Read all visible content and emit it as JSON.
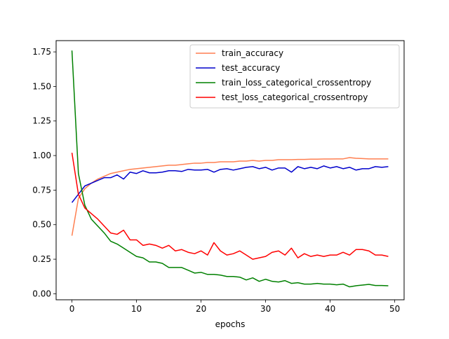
{
  "chart_data": {
    "type": "line",
    "xlabel": "epochs",
    "xlim": [
      -2.45,
      51.45
    ],
    "ylim": [
      -0.0435,
      1.8315
    ],
    "x_ticks": [
      0,
      10,
      20,
      30,
      40,
      50
    ],
    "y_ticks": [
      0.0,
      0.25,
      0.5,
      0.75,
      1.0,
      1.25,
      1.5,
      1.75
    ],
    "x_tick_labels": [
      "0",
      "10",
      "20",
      "30",
      "40",
      "50"
    ],
    "y_tick_labels": [
      "0.00",
      "0.25",
      "0.50",
      "0.75",
      "1.00",
      "1.25",
      "1.50",
      "1.75"
    ],
    "grid": false,
    "legend_position": "top-right",
    "x": [
      0,
      1,
      2,
      3,
      4,
      5,
      6,
      7,
      8,
      9,
      10,
      11,
      12,
      13,
      14,
      15,
      16,
      17,
      18,
      19,
      20,
      21,
      22,
      23,
      24,
      25,
      26,
      27,
      28,
      29,
      30,
      31,
      32,
      33,
      34,
      35,
      36,
      37,
      38,
      39,
      40,
      41,
      42,
      43,
      44,
      45,
      46,
      47,
      48,
      49
    ],
    "series": [
      {
        "name": "train_accuracy",
        "color": "#ff7f50",
        "values": [
          0.42,
          0.69,
          0.76,
          0.8,
          0.83,
          0.85,
          0.87,
          0.88,
          0.89,
          0.9,
          0.905,
          0.91,
          0.915,
          0.92,
          0.925,
          0.93,
          0.93,
          0.935,
          0.94,
          0.945,
          0.945,
          0.95,
          0.95,
          0.955,
          0.955,
          0.955,
          0.96,
          0.96,
          0.965,
          0.96,
          0.965,
          0.965,
          0.97,
          0.97,
          0.97,
          0.972,
          0.972,
          0.974,
          0.974,
          0.975,
          0.975,
          0.976,
          0.976,
          0.985,
          0.98,
          0.978,
          0.976,
          0.976,
          0.976,
          0.976
        ]
      },
      {
        "name": "test_accuracy",
        "color": "#0000cc",
        "values": [
          0.66,
          0.72,
          0.78,
          0.8,
          0.82,
          0.84,
          0.84,
          0.86,
          0.83,
          0.88,
          0.87,
          0.89,
          0.875,
          0.875,
          0.88,
          0.89,
          0.89,
          0.885,
          0.9,
          0.895,
          0.895,
          0.9,
          0.88,
          0.9,
          0.905,
          0.895,
          0.905,
          0.915,
          0.92,
          0.905,
          0.915,
          0.895,
          0.91,
          0.91,
          0.88,
          0.92,
          0.905,
          0.915,
          0.905,
          0.925,
          0.91,
          0.92,
          0.905,
          0.915,
          0.895,
          0.905,
          0.905,
          0.92,
          0.915,
          0.92
        ]
      },
      {
        "name": "train_loss_categorical_crossentropy",
        "color": "#008000",
        "values": [
          1.76,
          0.87,
          0.64,
          0.54,
          0.49,
          0.44,
          0.38,
          0.36,
          0.33,
          0.3,
          0.27,
          0.26,
          0.23,
          0.23,
          0.22,
          0.19,
          0.19,
          0.19,
          0.17,
          0.15,
          0.155,
          0.14,
          0.14,
          0.135,
          0.125,
          0.125,
          0.12,
          0.1,
          0.115,
          0.09,
          0.105,
          0.09,
          0.085,
          0.095,
          0.075,
          0.08,
          0.07,
          0.07,
          0.075,
          0.07,
          0.07,
          0.065,
          0.07,
          0.05,
          0.058,
          0.063,
          0.068,
          0.06,
          0.06,
          0.058
        ]
      },
      {
        "name": "test_loss_categorical_crossentropy",
        "color": "#ff0000",
        "values": [
          1.02,
          0.72,
          0.62,
          0.58,
          0.54,
          0.49,
          0.44,
          0.43,
          0.46,
          0.39,
          0.39,
          0.35,
          0.36,
          0.35,
          0.33,
          0.35,
          0.31,
          0.32,
          0.3,
          0.29,
          0.31,
          0.28,
          0.37,
          0.31,
          0.28,
          0.29,
          0.31,
          0.28,
          0.25,
          0.26,
          0.27,
          0.3,
          0.31,
          0.28,
          0.33,
          0.26,
          0.29,
          0.27,
          0.28,
          0.27,
          0.28,
          0.28,
          0.3,
          0.28,
          0.32,
          0.32,
          0.31,
          0.28,
          0.28,
          0.27
        ]
      }
    ]
  }
}
